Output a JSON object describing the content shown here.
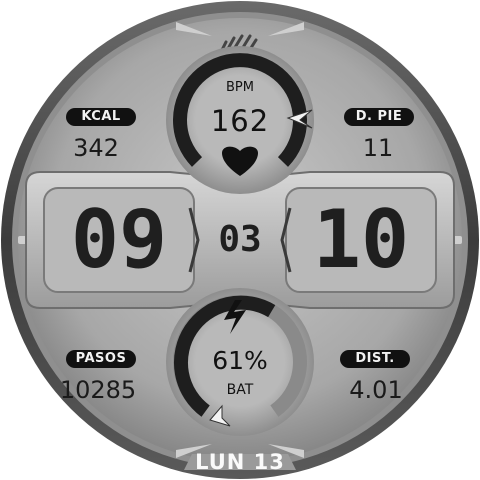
{
  "heart_rate": {
    "label": "BPM",
    "value": "162",
    "icon": "heart-icon"
  },
  "calories": {
    "label": "KCAL",
    "value": "342"
  },
  "floors": {
    "label": "D. PIE",
    "value": "11"
  },
  "time": {
    "hours": "09",
    "minutes": "10",
    "seconds": "03"
  },
  "steps": {
    "label": "PASOS",
    "value": "10285"
  },
  "distance": {
    "label": "DIST.",
    "value": "4.01"
  },
  "battery": {
    "label": "BAT",
    "value": "61%",
    "icon": "lightning-bolt-icon",
    "level": 0.61
  },
  "date": {
    "text": "LUN 13"
  },
  "brand_icon": "slash-stripes-icon",
  "colors": {
    "bezel": "#4a4a4a",
    "face": "#a9a9a9",
    "text": "#1a1a1a",
    "pill": "#111111"
  }
}
